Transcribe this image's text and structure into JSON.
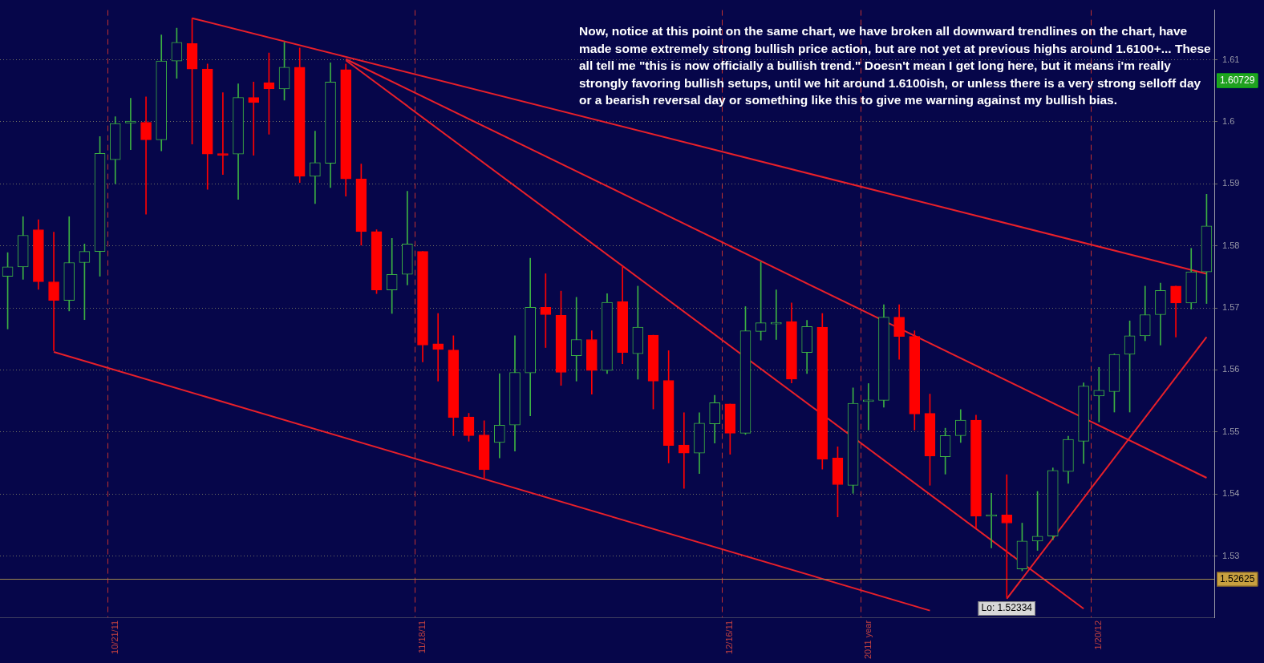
{
  "chart_data": {
    "type": "candlestick",
    "categories": [
      null,
      null,
      null,
      null,
      null,
      null,
      null,
      "10/21/11",
      null,
      null,
      null,
      null,
      null,
      null,
      null,
      null,
      null,
      null,
      null,
      null,
      null,
      null,
      null,
      null,
      null,
      null,
      null,
      "11/18/11",
      null,
      null,
      null,
      null,
      null,
      null,
      null,
      null,
      null,
      null,
      null,
      null,
      null,
      null,
      null,
      null,
      null,
      null,
      null,
      "12/16/11",
      null,
      null,
      null,
      null,
      null,
      null,
      null,
      null,
      "2011 year",
      null,
      null,
      null,
      null,
      null,
      null,
      null,
      null,
      null,
      null,
      null,
      null,
      null,
      null,
      "1/20/12",
      null,
      null,
      null,
      null,
      null,
      null,
      null
    ],
    "ohlc": [
      [
        1.5751,
        1.5789,
        1.5666,
        1.5766
      ],
      [
        1.5766,
        1.5847,
        1.5746,
        1.5817
      ],
      [
        1.5826,
        1.5842,
        1.573,
        1.5742
      ],
      [
        1.5742,
        1.5822,
        1.5631,
        1.5712
      ],
      [
        1.5712,
        1.5847,
        1.5695,
        1.5773
      ],
      [
        1.5773,
        1.5803,
        1.5681,
        1.5791
      ],
      [
        1.5791,
        1.5976,
        1.5751,
        1.5949
      ],
      [
        1.5939,
        1.6008,
        1.59,
        1.5997
      ],
      [
        1.5998,
        1.6038,
        1.5955,
        1.6001
      ],
      [
        1.5999,
        1.604,
        1.5851,
        1.5971
      ],
      [
        1.5971,
        1.614,
        1.5953,
        1.6098
      ],
      [
        1.6098,
        1.6151,
        1.607,
        1.6128
      ],
      [
        1.6126,
        1.6167,
        1.5964,
        1.6085
      ],
      [
        1.6085,
        1.6093,
        1.5891,
        1.5948
      ],
      [
        1.5948,
        1.6047,
        1.5915,
        1.5946
      ],
      [
        1.5948,
        1.6061,
        1.5875,
        1.6039
      ],
      [
        1.6039,
        1.6064,
        1.5946,
        1.6031
      ],
      [
        1.6063,
        1.6111,
        1.598,
        1.6053
      ],
      [
        1.6053,
        1.6128,
        1.6035,
        1.6088
      ],
      [
        1.6088,
        1.6119,
        1.5902,
        1.5912
      ],
      [
        1.5912,
        1.5985,
        1.5868,
        1.5934
      ],
      [
        1.5933,
        1.6095,
        1.5894,
        1.6064
      ],
      [
        1.6084,
        1.6093,
        1.588,
        1.5908
      ],
      [
        1.5908,
        1.5932,
        1.5801,
        1.5823
      ],
      [
        1.5823,
        1.5826,
        1.5723,
        1.5729
      ],
      [
        1.5729,
        1.5812,
        1.5691,
        1.5754
      ],
      [
        1.5754,
        1.5888,
        1.5737,
        1.5803
      ],
      [
        1.5791,
        1.5791,
        1.5613,
        1.564
      ],
      [
        1.5642,
        1.5691,
        1.5582,
        1.5633
      ],
      [
        1.5632,
        1.5655,
        1.5494,
        1.5523
      ],
      [
        1.5524,
        1.553,
        1.5485,
        1.5494
      ],
      [
        1.5495,
        1.5518,
        1.5424,
        1.5439
      ],
      [
        1.5483,
        1.5594,
        1.5458,
        1.5511
      ],
      [
        1.5511,
        1.5655,
        1.5469,
        1.5596
      ],
      [
        1.5595,
        1.578,
        1.5526,
        1.5701
      ],
      [
        1.5701,
        1.5755,
        1.5636,
        1.5689
      ],
      [
        1.5688,
        1.5727,
        1.5575,
        1.5596
      ],
      [
        1.5623,
        1.5717,
        1.5582,
        1.5649
      ],
      [
        1.5649,
        1.5663,
        1.5561,
        1.5599
      ],
      [
        1.5599,
        1.5723,
        1.5594,
        1.5709
      ],
      [
        1.571,
        1.5767,
        1.561,
        1.5628
      ],
      [
        1.5626,
        1.5735,
        1.5585,
        1.5669
      ],
      [
        1.5656,
        1.5656,
        1.5537,
        1.5582
      ],
      [
        1.5583,
        1.5631,
        1.545,
        1.5478
      ],
      [
        1.5479,
        1.5531,
        1.5409,
        1.5466
      ],
      [
        1.5466,
        1.5531,
        1.5433,
        1.5514
      ],
      [
        1.5513,
        1.5559,
        1.5482,
        1.5547
      ],
      [
        1.5545,
        1.5545,
        1.5464,
        1.5498
      ],
      [
        1.5498,
        1.5702,
        1.5496,
        1.5663
      ],
      [
        1.5662,
        1.5774,
        1.5648,
        1.5676
      ],
      [
        1.5674,
        1.5729,
        1.5649,
        1.5676
      ],
      [
        1.5678,
        1.5708,
        1.5579,
        1.5585
      ],
      [
        1.5628,
        1.568,
        1.5594,
        1.567
      ],
      [
        1.5669,
        1.5691,
        1.544,
        1.5456
      ],
      [
        1.5458,
        1.5476,
        1.5363,
        1.5415
      ],
      [
        1.5414,
        1.5571,
        1.5401,
        1.5546
      ],
      [
        1.5549,
        1.5578,
        1.5503,
        1.5551
      ],
      [
        1.5551,
        1.5705,
        1.554,
        1.5685
      ],
      [
        1.5685,
        1.5705,
        1.5617,
        1.5654
      ],
      [
        1.5654,
        1.5663,
        1.5503,
        1.5529
      ],
      [
        1.553,
        1.5561,
        1.5414,
        1.5461
      ],
      [
        1.546,
        1.5506,
        1.5432,
        1.5494
      ],
      [
        1.5494,
        1.5536,
        1.5483,
        1.5519
      ],
      [
        1.5519,
        1.5527,
        1.5345,
        1.5364
      ],
      [
        1.5364,
        1.5401,
        1.5313,
        1.5366
      ],
      [
        1.5366,
        1.5431,
        1.5233,
        1.5353
      ],
      [
        1.5279,
        1.5353,
        1.5276,
        1.5324
      ],
      [
        1.5324,
        1.5404,
        1.5309,
        1.5332
      ],
      [
        1.5332,
        1.5442,
        1.5326,
        1.5438
      ],
      [
        1.5436,
        1.5493,
        1.5417,
        1.5488
      ],
      [
        1.5485,
        1.5579,
        1.5449,
        1.5574
      ],
      [
        1.5558,
        1.5604,
        1.5516,
        1.5567
      ],
      [
        1.5565,
        1.5626,
        1.5532,
        1.5625
      ],
      [
        1.5625,
        1.5679,
        1.5532,
        1.5655
      ],
      [
        1.5655,
        1.5735,
        1.5647,
        1.5689
      ],
      [
        1.5689,
        1.574,
        1.564,
        1.5728
      ],
      [
        1.5735,
        1.5735,
        1.5653,
        1.5708
      ],
      [
        1.5708,
        1.5796,
        1.5698,
        1.5758
      ],
      [
        1.5758,
        1.5883,
        1.5707,
        1.5832
      ]
    ],
    "colors": [
      "#3cb043",
      "#3cb043",
      "#ff0000",
      "#ff0000",
      "#3cb043",
      "#3cb043",
      "#3cb043",
      "#3cb043",
      "#3cb043",
      "#ff0000",
      "#3cb043",
      "#3cb043",
      "#ff0000",
      "#ff0000",
      "#ff0000",
      "#3cb043",
      "#ff0000",
      "#ff0000",
      "#3cb043",
      "#ff0000",
      "#3cb043",
      "#3cb043",
      "#ff0000",
      "#ff0000",
      "#ff0000",
      "#3cb043",
      "#3cb043",
      "#ff0000",
      "#ff0000",
      "#ff0000",
      "#ff0000",
      "#ff0000",
      "#3cb043",
      "#3cb043",
      "#3cb043",
      "#ff0000",
      "#ff0000",
      "#3cb043",
      "#ff0000",
      "#3cb043",
      "#ff0000",
      "#3cb043",
      "#ff0000",
      "#ff0000",
      "#ff0000",
      "#3cb043",
      "#3cb043",
      "#ff0000",
      "#3cb043",
      "#3cb043",
      "#3cb043",
      "#ff0000",
      "#3cb043",
      "#ff0000",
      "#ff0000",
      "#3cb043",
      "#3cb043",
      "#3cb043",
      "#ff0000",
      "#ff0000",
      "#ff0000",
      "#3cb043",
      "#3cb043",
      "#ff0000",
      "#3cb043",
      "#ff0000",
      "#3cb043",
      "#3cb043",
      "#3cb043",
      "#3cb043",
      "#3cb043",
      "#3cb043",
      "#3cb043",
      "#3cb043",
      "#3cb043",
      "#3cb043",
      "#ff0000",
      "#3cb043",
      "#3cb043"
    ],
    "series": [
      {
        "type": "line",
        "color": "#e8202a",
        "values": [
          null,
          null,
          null,
          null,
          null,
          null,
          null,
          null,
          null,
          null,
          null,
          null,
          1.6167,
          null,
          null,
          null,
          null,
          null,
          null,
          null,
          null,
          null,
          null,
          null,
          null,
          null,
          null,
          null,
          null,
          null,
          null,
          null,
          null,
          null,
          null,
          null,
          null,
          null,
          null,
          null,
          null,
          null,
          null,
          null,
          null,
          null,
          null,
          null,
          null,
          null,
          null,
          null,
          null,
          null,
          null,
          null,
          null,
          null,
          null,
          null,
          null,
          null,
          null,
          null,
          null,
          null,
          null,
          null,
          null,
          null,
          null,
          null,
          null,
          null,
          null,
          null,
          null,
          null,
          1.5755
        ]
      },
      {
        "type": "line",
        "color": "#e8202a",
        "values": [
          null,
          null,
          null,
          null,
          null,
          null,
          null,
          null,
          null,
          null,
          null,
          null,
          null,
          null,
          null,
          null,
          null,
          null,
          null,
          null,
          null,
          null,
          1.6101,
          null,
          null,
          null,
          null,
          null,
          null,
          null,
          null,
          null,
          null,
          null,
          null,
          null,
          null,
          null,
          null,
          null,
          null,
          null,
          null,
          null,
          null,
          null,
          null,
          null,
          null,
          null,
          null,
          null,
          null,
          null,
          null,
          null,
          null,
          null,
          null,
          null,
          null,
          null,
          null,
          null,
          null,
          null,
          null,
          null,
          null,
          null,
          null,
          null,
          null,
          null,
          null,
          null,
          null,
          null,
          1.5426
        ]
      },
      {
        "type": "line",
        "color": "#e8202a",
        "values": [
          null,
          null,
          null,
          null,
          null,
          null,
          null,
          null,
          null,
          null,
          null,
          null,
          null,
          null,
          null,
          null,
          null,
          null,
          null,
          null,
          null,
          null,
          1.6099,
          null,
          null,
          null,
          null,
          null,
          null,
          null,
          null,
          null,
          null,
          null,
          null,
          null,
          null,
          null,
          null,
          null,
          null,
          null,
          null,
          null,
          null,
          null,
          null,
          null,
          null,
          null,
          null,
          null,
          null,
          null,
          null,
          null,
          null,
          null,
          null,
          null,
          null,
          null,
          null,
          null,
          null,
          null,
          null,
          null,
          null,
          null,
          1.5215,
          null,
          null,
          null,
          null,
          null,
          null,
          null,
          null
        ]
      },
      {
        "type": "line",
        "color": "#e8202a",
        "values": [
          null,
          null,
          null,
          1.5629,
          null,
          null,
          null,
          null,
          null,
          null,
          null,
          null,
          null,
          null,
          null,
          null,
          null,
          null,
          null,
          null,
          null,
          null,
          null,
          null,
          null,
          null,
          null,
          null,
          null,
          null,
          null,
          null,
          null,
          null,
          null,
          null,
          null,
          null,
          null,
          null,
          null,
          null,
          null,
          null,
          null,
          null,
          null,
          null,
          null,
          null,
          null,
          null,
          null,
          null,
          null,
          null,
          null,
          null,
          null,
          null,
          1.5212,
          null,
          null,
          null,
          null,
          null,
          null,
          null,
          null,
          null,
          null,
          null,
          null,
          null,
          null,
          null,
          null,
          null,
          null
        ]
      },
      {
        "type": "line",
        "color": "#e8202a",
        "values": [
          null,
          null,
          null,
          null,
          null,
          null,
          null,
          null,
          null,
          null,
          null,
          null,
          null,
          null,
          null,
          null,
          null,
          null,
          null,
          null,
          null,
          null,
          null,
          null,
          null,
          null,
          null,
          null,
          null,
          null,
          null,
          null,
          null,
          null,
          null,
          null,
          null,
          null,
          null,
          null,
          null,
          null,
          null,
          null,
          null,
          null,
          null,
          null,
          null,
          null,
          null,
          null,
          null,
          null,
          null,
          null,
          null,
          null,
          null,
          null,
          null,
          null,
          null,
          null,
          null,
          1.5231,
          null,
          null,
          null,
          null,
          null,
          null,
          null,
          null,
          null,
          null,
          null,
          null,
          1.5653
        ]
      }
    ],
    "marker": "none",
    "ylim": [
      1.52,
      1.618
    ],
    "yticks": [
      1.53,
      1.54,
      1.55,
      1.56,
      1.57,
      1.58,
      1.59,
      1.6,
      1.61
    ],
    "grid": true,
    "ref_lines": [
      {
        "axis": "y",
        "value": 1.52625,
        "label": "1.52625",
        "color": "#a08a50"
      }
    ],
    "annotations": [
      "Now, notice at this point on the same chart, we have broken all downward trendlines on the chart, have made some extremely strong bullish price action, but are not yet at previous highs around 1.6100+... These all tell me \"this is now officially a bullish trend.\" Doesn't mean I get long here, but it means i'm really strongly favoring bullish setups, until we hit around 1.6100ish, or unless there is a very strong selloff day or a bearish reversal day or something like this to give me warning against my bullish bias.",
      {
        "text": "Lo: 1.52334",
        "y": 1.52334
      },
      "1.60729"
    ]
  }
}
